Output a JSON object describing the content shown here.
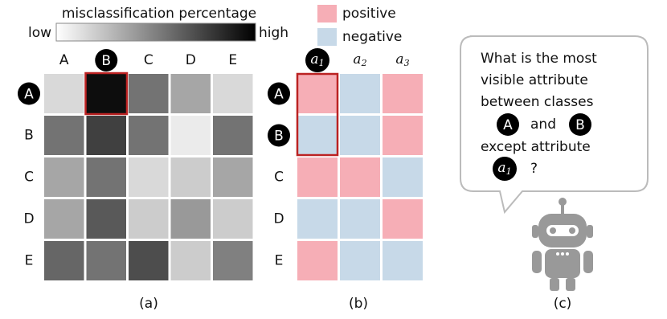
{
  "panel_a": {
    "legend_title": "misclassification percentage",
    "low": "low",
    "high": "high",
    "columns": [
      "A",
      "B",
      "C",
      "D",
      "E"
    ],
    "rows": [
      "A",
      "B",
      "C",
      "D",
      "E"
    ],
    "values": [
      [
        15,
        95,
        55,
        35,
        15
      ],
      [
        55,
        75,
        55,
        8,
        55
      ],
      [
        35,
        55,
        15,
        20,
        35
      ],
      [
        35,
        65,
        20,
        40,
        20
      ],
      [
        60,
        55,
        70,
        20,
        50
      ]
    ],
    "caption": "(a)"
  },
  "panel_b": {
    "legend": [
      {
        "label": "positive",
        "color": "#f6aeb6"
      },
      {
        "label": "negative",
        "color": "#c7d9e8"
      }
    ],
    "attributes": [
      {
        "symbol": "a",
        "index": "1"
      },
      {
        "symbol": "a",
        "index": "2"
      },
      {
        "symbol": "a",
        "index": "3"
      }
    ],
    "rows": [
      "A",
      "B",
      "C",
      "D",
      "E"
    ],
    "values": [
      [
        1,
        0,
        1
      ],
      [
        0,
        0,
        1
      ],
      [
        1,
        1,
        0
      ],
      [
        0,
        0,
        1
      ],
      [
        1,
        0,
        0
      ]
    ],
    "caption": "(b)"
  },
  "panel_c": {
    "lines": [
      "What is the most",
      "visible attribute",
      "between classes"
    ],
    "class1": "A",
    "joiner": "and",
    "class2": "B",
    "line5": "except attribute",
    "attribute": {
      "symbol": "a",
      "index": "1"
    },
    "end": "?",
    "caption": "(c)"
  }
}
